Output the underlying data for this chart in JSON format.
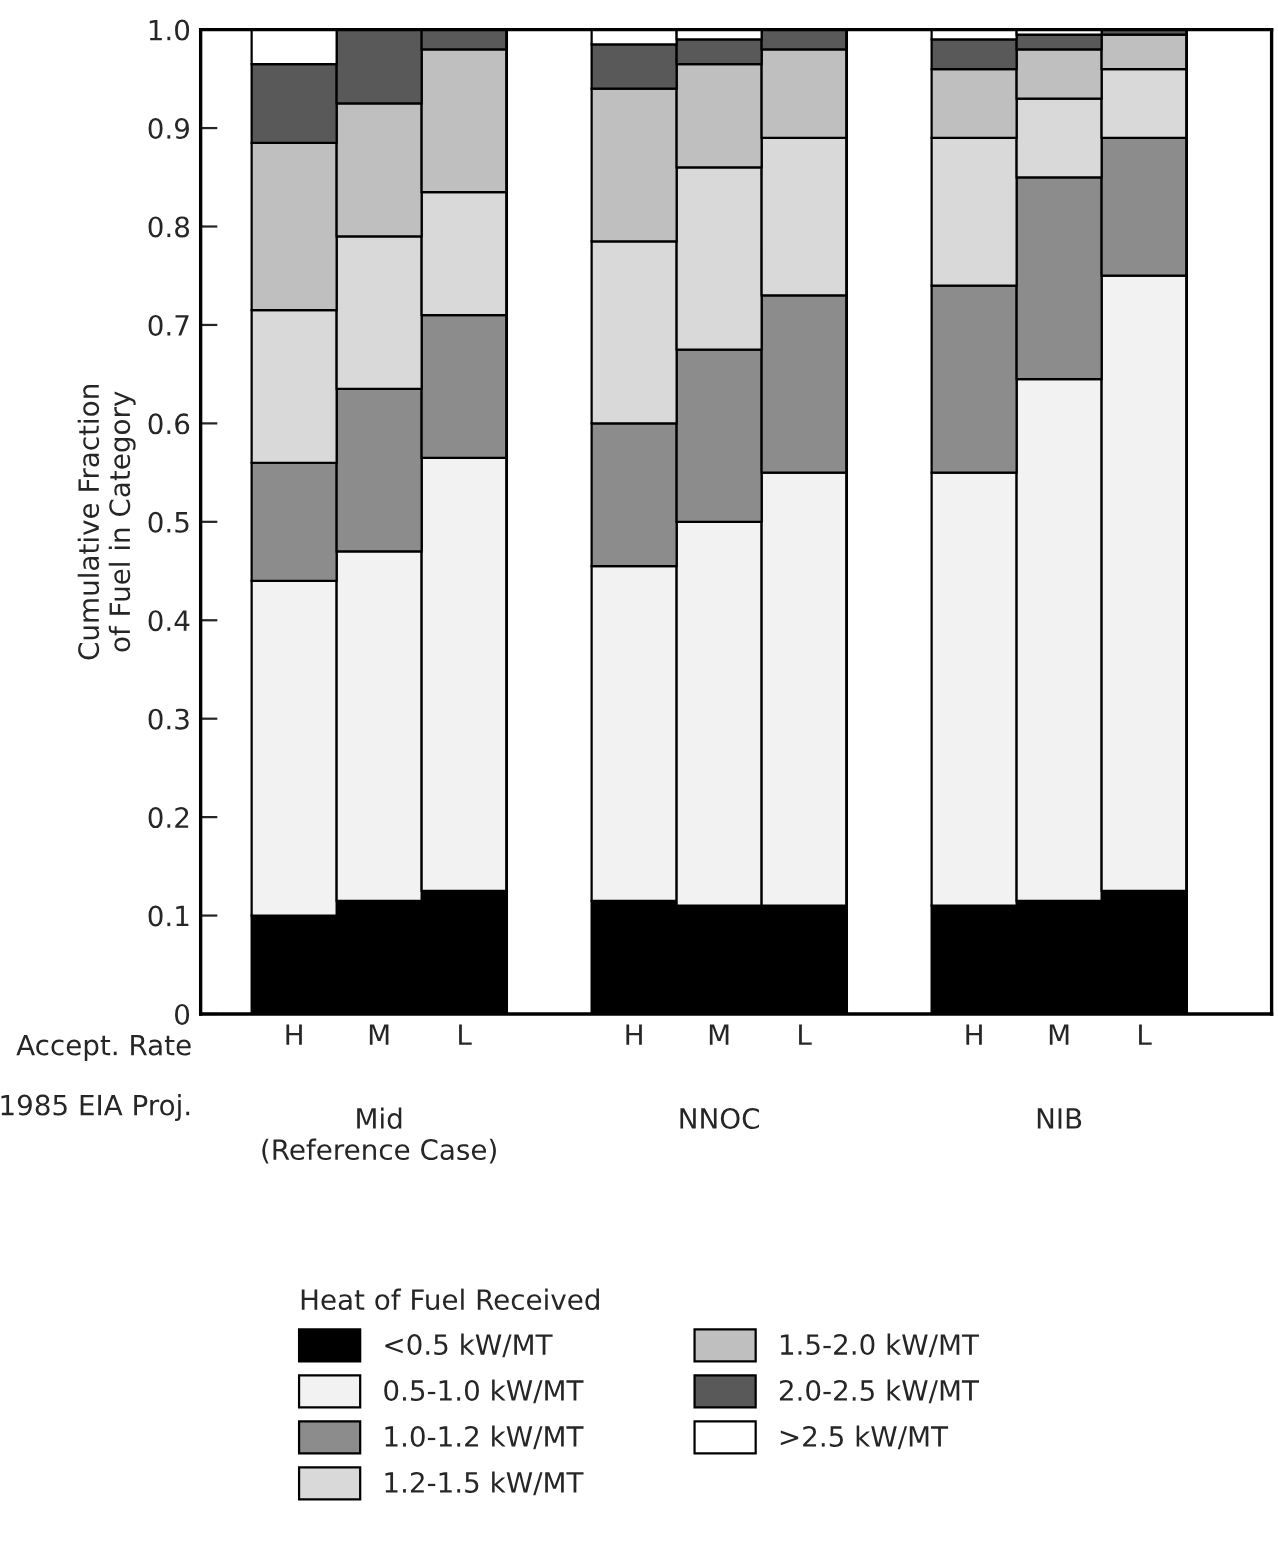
{
  "chart_data": {
    "type": "bar",
    "stacked": true,
    "ylabel": "Cumulative Fraction\nof Fuel in Category",
    "categories": [
      "H",
      "M",
      "L",
      null,
      "H",
      "M",
      "L",
      null,
      "H",
      "M",
      "L",
      null
    ],
    "series": [
      {
        "name": "<0.5 kW/MT",
        "color": "#000000",
        "values": [
          0.1,
          0.115,
          0.125,
          null,
          0.115,
          0.11,
          0.11,
          null,
          0.11,
          0.115,
          0.125,
          null
        ]
      },
      {
        "name": "0.5-1.0 kW/MT",
        "color": "#f2f2f2",
        "values": [
          0.34,
          0.355,
          0.44,
          null,
          0.34,
          0.39,
          0.44,
          null,
          0.44,
          0.53,
          0.625,
          null
        ]
      },
      {
        "name": "1.0-1.2 kW/MT",
        "color": "#8c8c8c",
        "values": [
          0.12,
          0.165,
          0.145,
          null,
          0.145,
          0.175,
          0.18,
          null,
          0.19,
          0.205,
          0.14,
          null
        ]
      },
      {
        "name": "1.2-1.5 kW/MT",
        "color": "#d9d9d9",
        "values": [
          0.155,
          0.155,
          0.125,
          null,
          0.185,
          0.185,
          0.16,
          null,
          0.15,
          0.08,
          0.07,
          null
        ]
      },
      {
        "name": "1.5-2.0 kW/MT",
        "color": "#bfbfbf",
        "values": [
          0.17,
          0.135,
          0.145,
          null,
          0.155,
          0.105,
          0.09,
          null,
          0.07,
          0.05,
          0.035,
          null
        ]
      },
      {
        "name": "2.0-2.5 kW/MT",
        "color": "#595959",
        "values": [
          0.08,
          0.075,
          0.02,
          null,
          0.045,
          0.025,
          0.02,
          null,
          0.03,
          0.015,
          0.005,
          null
        ]
      },
      {
        "name": ">2.5 kW/MT",
        "color": "#ffffff",
        "values": [
          0.035,
          null,
          null,
          null,
          0.015,
          0.01,
          null,
          null,
          0.01,
          0.005,
          null,
          null
        ]
      }
    ],
    "ylim": [
      0,
      1.0
    ],
    "yticks": [
      0,
      0.1,
      0.2,
      0.3,
      0.4,
      0.5,
      0.6,
      0.7,
      0.8,
      0.9,
      {
        "value": 1.0,
        "label": "1.0"
      }
    ],
    "legend": "bottom",
    "legend_title": "Heat of Fuel Received",
    "grid": false,
    "annotations": [
      "Accept. Rate",
      "1985 EIA Proj.",
      "Mid\n(Reference Case)",
      "NNOC",
      "NIB"
    ]
  }
}
